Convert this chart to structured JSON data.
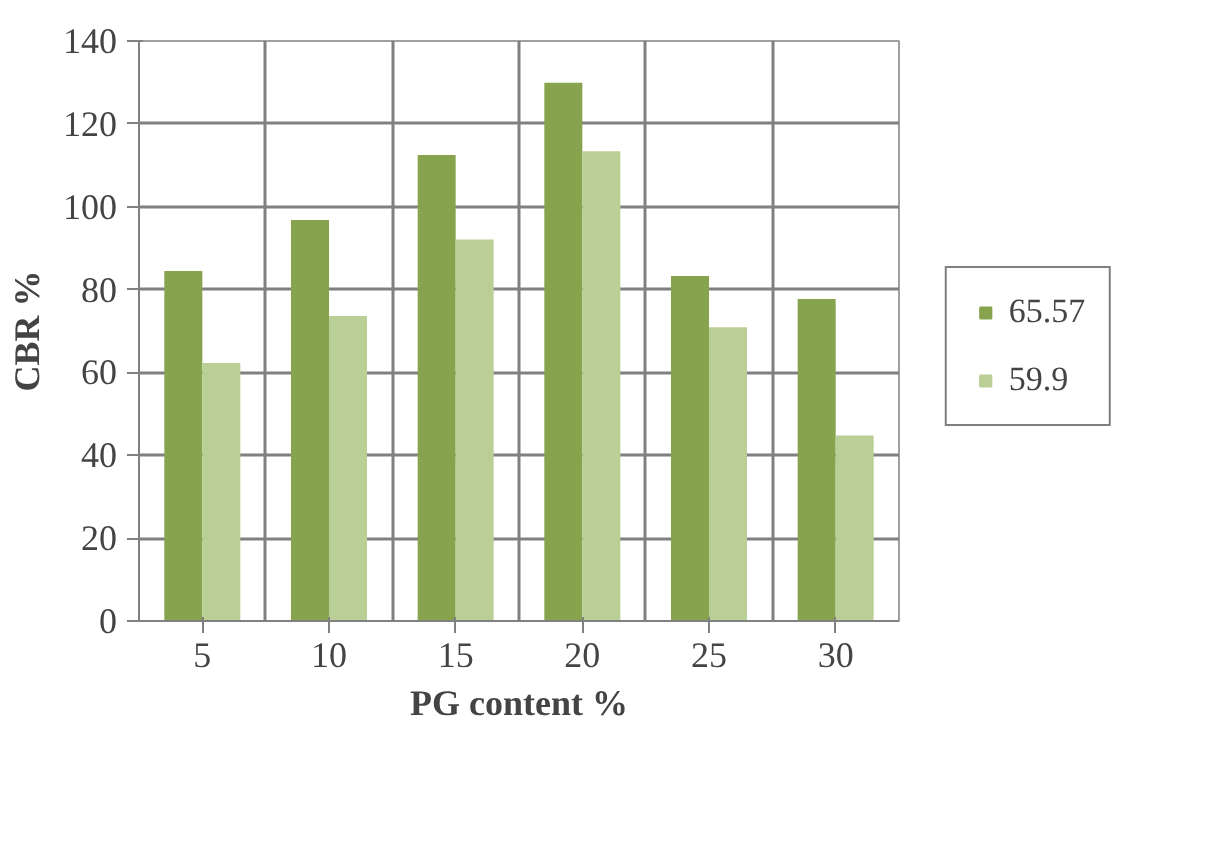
{
  "chart_data": {
    "type": "bar",
    "xlabel": "PG content %",
    "ylabel": "CBR %",
    "categories": [
      "5",
      "10",
      "15",
      "20",
      "25",
      "30"
    ],
    "series": [
      {
        "name": "65.57",
        "color": "#87a34d",
        "values": [
          84.5,
          96.8,
          112.5,
          129.9,
          83.3,
          77.7
        ]
      },
      {
        "name": "59.9",
        "color": "#b9cf96",
        "values": [
          62.3,
          73.6,
          92.1,
          113.4,
          70.9,
          44.8
        ]
      }
    ],
    "ylim": [
      0,
      140
    ],
    "yticks": [
      0,
      20,
      40,
      60,
      80,
      100,
      120,
      140
    ],
    "grid": true,
    "legend": "right"
  }
}
